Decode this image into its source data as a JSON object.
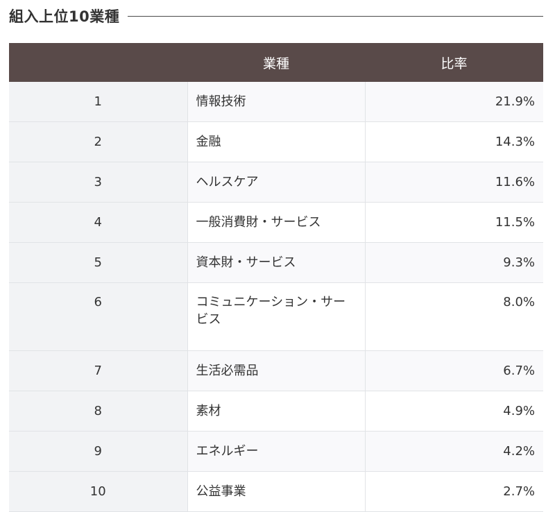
{
  "section": {
    "title": "組入上位10業種"
  },
  "table": {
    "headers": {
      "rank": "",
      "sector": "業種",
      "ratio": "比率"
    },
    "rows": [
      {
        "rank": "1",
        "sector": "情報技術",
        "ratio": "21.9%"
      },
      {
        "rank": "2",
        "sector": "金融",
        "ratio": "14.3%"
      },
      {
        "rank": "3",
        "sector": "ヘルスケア",
        "ratio": "11.6%"
      },
      {
        "rank": "4",
        "sector": "一般消費財・サービス",
        "ratio": "11.5%"
      },
      {
        "rank": "5",
        "sector": "資本財・サービス",
        "ratio": "9.3%"
      },
      {
        "rank": "6",
        "sector": "コミュニケーション・サービス",
        "ratio": "8.0%"
      },
      {
        "rank": "7",
        "sector": "生活必需品",
        "ratio": "6.7%"
      },
      {
        "rank": "8",
        "sector": "素材",
        "ratio": "4.9%"
      },
      {
        "rank": "9",
        "sector": "エネルギー",
        "ratio": "4.2%"
      },
      {
        "rank": "10",
        "sector": "公益事業",
        "ratio": "2.7%"
      }
    ]
  }
}
